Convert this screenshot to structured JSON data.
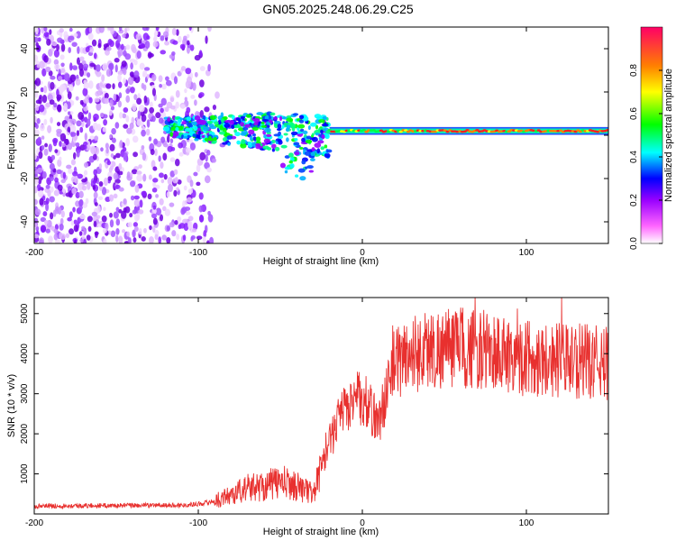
{
  "title": "GN05.2025.248.06.29.C25",
  "chart_data": [
    {
      "type": "heatmap",
      "name": "spectrogram",
      "xlabel": "Height of straight line (km)",
      "ylabel": "Frequency (Hz)",
      "xlim": [
        -200,
        150
      ],
      "ylim": [
        -50,
        50
      ],
      "xticks": [
        -200,
        -100,
        0,
        100
      ],
      "yticks": [
        -40,
        -20,
        0,
        20,
        40
      ],
      "colorbar": {
        "label": "Normalized spectral amplitude",
        "range": [
          0,
          1
        ],
        "ticks": [
          "0.0",
          "0.2",
          "0.4",
          "0.6",
          "0.8"
        ],
        "colors": [
          "#ffffff",
          "#ff00ff",
          "#8000ff",
          "#0000ff",
          "#00ffff",
          "#00ff00",
          "#ffff00",
          "#ff8000",
          "#ff0000"
        ]
      },
      "features": {
        "noise_region_x": [
          -200,
          -92
        ],
        "signal_start_x": -120,
        "bright_line_start_x": -20,
        "bright_line_freq_hz": 2
      }
    },
    {
      "type": "line",
      "name": "snr",
      "xlabel": "Height of straight line (km)",
      "ylabel": "SNR (10 * v/v)",
      "xlim": [
        -200,
        150
      ],
      "ylim": [
        0,
        5400
      ],
      "xticks": [
        -200,
        -100,
        0,
        100
      ],
      "yticks": [
        1000,
        2000,
        3000,
        4000,
        5000
      ],
      "color": "#e8302e",
      "series": [
        {
          "name": "SNR",
          "x": [
            -200,
            -150,
            -110,
            -100,
            -90,
            -80,
            -70,
            -60,
            -50,
            -40,
            -30,
            -20,
            -10,
            0,
            10,
            20,
            30,
            40,
            60,
            80,
            100,
            120,
            150
          ],
          "values": [
            200,
            210,
            220,
            250,
            320,
            480,
            650,
            700,
            800,
            700,
            500,
            1800,
            2700,
            2900,
            2300,
            3800,
            4000,
            4100,
            4150,
            4050,
            3900,
            3850,
            3750
          ]
        }
      ]
    }
  ]
}
